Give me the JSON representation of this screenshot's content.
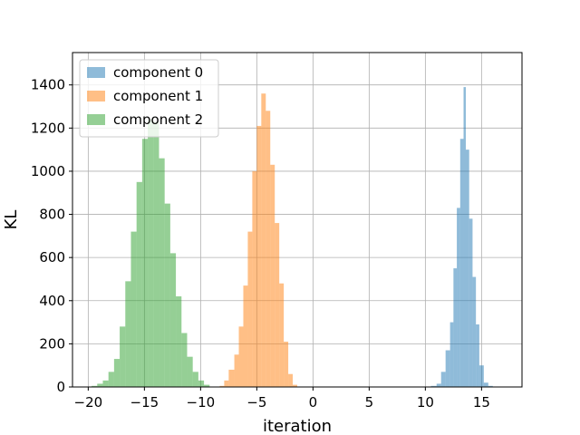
{
  "chart_data": {
    "type": "bar",
    "subtype": "histogram",
    "title": "",
    "xlabel": "iteration",
    "ylabel": "KL",
    "xlim": [
      -21.4,
      18.6
    ],
    "ylim": [
      0,
      1550
    ],
    "xticks": [
      -20,
      -15,
      -10,
      -5,
      0,
      5,
      10,
      15
    ],
    "xtick_labels": [
      "−20",
      "−15",
      "−10",
      "−5",
      "0",
      "5",
      "10",
      "15"
    ],
    "yticks": [
      0,
      200,
      400,
      600,
      800,
      1000,
      1200,
      1400
    ],
    "ytick_labels": [
      "0",
      "200",
      "400",
      "600",
      "800",
      "1000",
      "1200",
      "1400"
    ],
    "grid": true,
    "legend_position": "upper-left",
    "series": [
      {
        "name": "component 0",
        "color": "#1f77b4",
        "alpha": 0.5,
        "bins": [
          [
            10.5,
            11.0,
            5
          ],
          [
            11.0,
            11.4,
            15
          ],
          [
            11.4,
            11.8,
            70
          ],
          [
            11.8,
            12.2,
            170
          ],
          [
            12.2,
            12.5,
            300
          ],
          [
            12.5,
            12.8,
            550
          ],
          [
            12.8,
            13.1,
            830
          ],
          [
            13.1,
            13.4,
            1150
          ],
          [
            13.4,
            13.6,
            1390
          ],
          [
            13.6,
            13.9,
            1100
          ],
          [
            13.9,
            14.2,
            780
          ],
          [
            14.2,
            14.5,
            510
          ],
          [
            14.5,
            14.8,
            290
          ],
          [
            14.8,
            15.2,
            100
          ],
          [
            15.2,
            15.6,
            20
          ],
          [
            15.6,
            16.0,
            5
          ]
        ]
      },
      {
        "name": "component 1",
        "color": "#ff7f0e",
        "alpha": 0.5,
        "bins": [
          [
            -8.3,
            -7.9,
            5
          ],
          [
            -7.9,
            -7.5,
            30
          ],
          [
            -7.5,
            -7.0,
            80
          ],
          [
            -7.0,
            -6.6,
            150
          ],
          [
            -6.6,
            -6.2,
            280
          ],
          [
            -6.2,
            -5.8,
            470
          ],
          [
            -5.8,
            -5.4,
            720
          ],
          [
            -5.4,
            -5.0,
            1000
          ],
          [
            -5.0,
            -4.6,
            1210
          ],
          [
            -4.6,
            -4.2,
            1360
          ],
          [
            -4.2,
            -3.8,
            1280
          ],
          [
            -3.8,
            -3.4,
            1030
          ],
          [
            -3.4,
            -3.0,
            760
          ],
          [
            -3.0,
            -2.6,
            480
          ],
          [
            -2.6,
            -2.2,
            210
          ],
          [
            -2.2,
            -1.8,
            60
          ],
          [
            -1.8,
            -1.4,
            10
          ]
        ]
      },
      {
        "name": "component 2",
        "color": "#2ca02c",
        "alpha": 0.5,
        "bins": [
          [
            -19.7,
            -19.2,
            5
          ],
          [
            -19.2,
            -18.7,
            15
          ],
          [
            -18.7,
            -18.2,
            30
          ],
          [
            -18.2,
            -17.7,
            70
          ],
          [
            -17.7,
            -17.2,
            130
          ],
          [
            -17.2,
            -16.7,
            280
          ],
          [
            -16.7,
            -16.2,
            490
          ],
          [
            -16.2,
            -15.7,
            720
          ],
          [
            -15.7,
            -15.2,
            950
          ],
          [
            -15.2,
            -14.7,
            1150
          ],
          [
            -14.7,
            -14.2,
            1240
          ],
          [
            -14.2,
            -13.7,
            1230
          ],
          [
            -13.7,
            -13.2,
            1060
          ],
          [
            -13.2,
            -12.7,
            850
          ],
          [
            -12.7,
            -12.2,
            620
          ],
          [
            -12.2,
            -11.7,
            420
          ],
          [
            -11.7,
            -11.2,
            250
          ],
          [
            -11.2,
            -10.7,
            140
          ],
          [
            -10.7,
            -10.2,
            70
          ],
          [
            -10.2,
            -9.7,
            30
          ],
          [
            -9.7,
            -9.2,
            10
          ]
        ]
      }
    ]
  }
}
